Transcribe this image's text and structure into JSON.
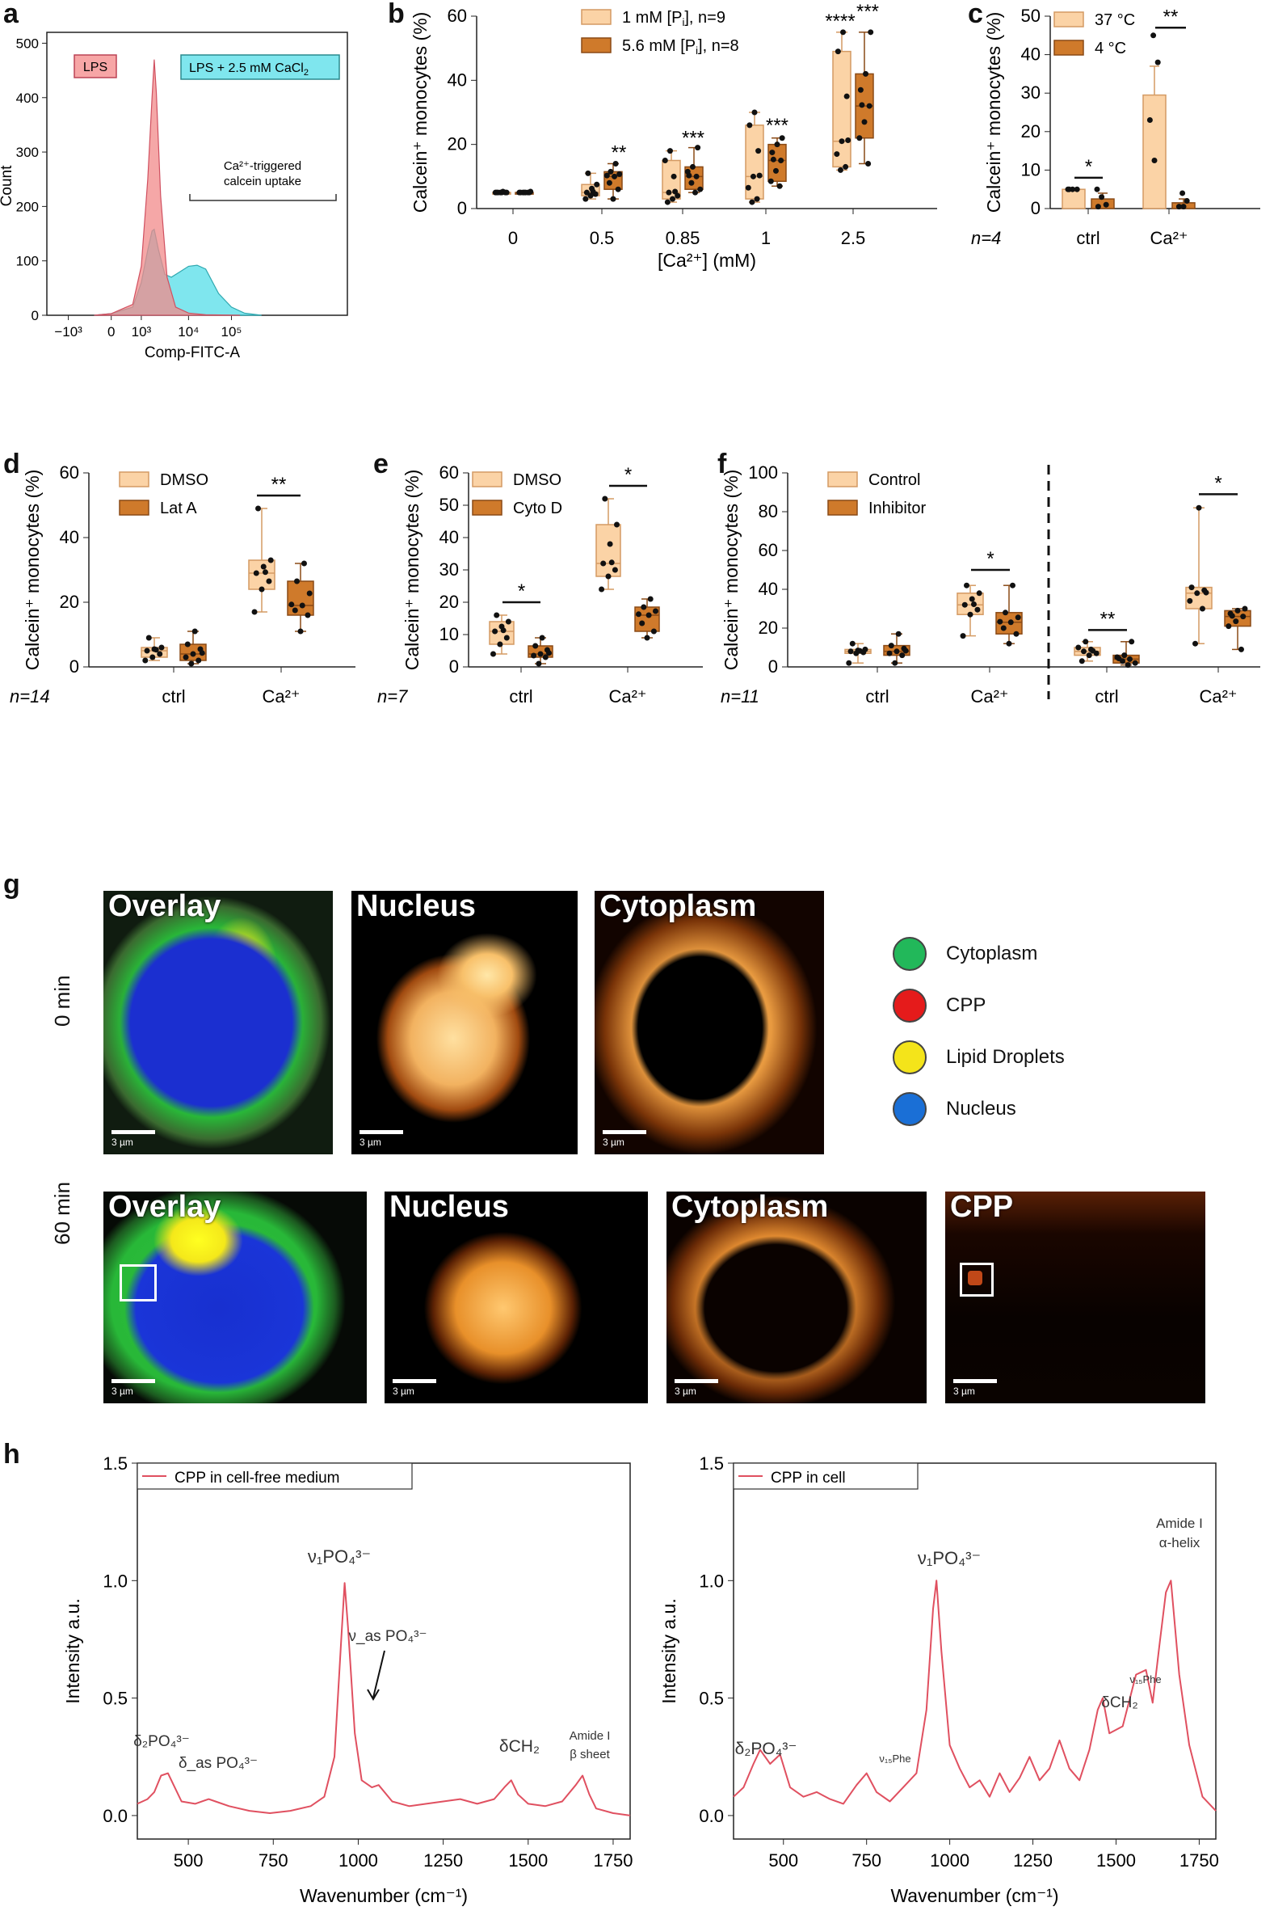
{
  "panel_letters": {
    "a": "a",
    "b": "b",
    "c": "c",
    "d": "d",
    "e": "e",
    "f": "f",
    "g": "g",
    "h": "h"
  },
  "colors": {
    "light": "#fbd3a6",
    "dark": "#cf7a2b",
    "lightEdge": "#d49a63",
    "darkEdge": "#8a4a16",
    "pink": "#f28a8a",
    "cyan": "#5fe0ea",
    "redline": "#e05060"
  },
  "panel_a": {
    "legend1": "LPS",
    "legend2": "LPS + 2.5 mM CaCl",
    "legend2_sub": "2",
    "annotation_line1": "Ca²⁺-triggered",
    "annotation_line2": "calcein uptake",
    "chart_data": {
      "type": "area",
      "xlabel": "Comp-FITC-A",
      "ylabel": "Count",
      "xticks": [
        "−10³",
        "0",
        "10³",
        "10⁴",
        "10⁵"
      ],
      "yticks": [
        0,
        100,
        200,
        300,
        400,
        500
      ],
      "ylim": [
        0,
        520
      ],
      "series": [
        {
          "name": "LPS",
          "x": [
            -0.4,
            0,
            0.5,
            0.7,
            0.85,
            0.95,
            1.0,
            1.05,
            1.15,
            1.3,
            1.5,
            1.8,
            2.2,
            3.0
          ],
          "values": [
            0,
            3,
            20,
            90,
            250,
            400,
            470,
            410,
            220,
            70,
            15,
            4,
            1,
            0
          ]
        },
        {
          "name": "LPS + 2.5 mM CaCl2",
          "x": [
            -0.4,
            0,
            0.5,
            0.7,
            0.85,
            0.95,
            1.0,
            1.1,
            1.25,
            1.4,
            1.6,
            1.8,
            2.0,
            2.2,
            2.5,
            2.8,
            3.1,
            3.5
          ],
          "values": [
            0,
            3,
            15,
            60,
            120,
            155,
            158,
            120,
            75,
            70,
            80,
            90,
            92,
            85,
            40,
            15,
            4,
            0
          ]
        }
      ]
    }
  },
  "panel_b": {
    "legend1": "1 mM [P",
    "legend1_sub": "i",
    "legend1_end": "], n=9",
    "legend2": "5.6 mM [P",
    "legend2_sub": "i",
    "legend2_end": "], n=8",
    "ylabel": "Calcein⁺ monocytes (%)",
    "xlabel": "[Ca²⁺] (mM)",
    "chart_data": {
      "type": "box",
      "categories": [
        "0",
        "0.5",
        "0.85",
        "1",
        "2.5"
      ],
      "ylim": [
        0,
        60
      ],
      "yticks": [
        0,
        20,
        40,
        60
      ],
      "series": [
        {
          "name": "1 mM [Pi], n=9",
          "boxes": [
            [
              5,
              5,
              5,
              5,
              5
            ],
            [
              3,
              4,
              5,
              7.5,
              11
            ],
            [
              2,
              3,
              5,
              15,
              18
            ],
            [
              2,
              3,
              10,
              26,
              30
            ],
            [
              12,
              13,
              21,
              49,
              55
            ]
          ]
        },
        {
          "name": "5.6 mM [Pi], n=8",
          "boxes": [
            [
              5,
              5,
              5,
              5,
              5
            ],
            [
              3,
              6,
              10,
              11.5,
              14
            ],
            [
              5,
              6,
              10,
              13,
              19
            ],
            [
              7,
              8.5,
              15,
              20,
              22
            ],
            [
              14,
              22,
              32,
              42,
              55
            ]
          ]
        }
      ],
      "sig": [
        "",
        "**",
        "***",
        "***",
        "****|***"
      ]
    }
  },
  "panel_c": {
    "legend1": "37 °C",
    "legend2": "4 °C",
    "n_label": "n=4",
    "ylabel": "Calcein⁺ monocytes (%)",
    "chart_data": {
      "type": "bar",
      "categories": [
        "ctrl",
        "Ca²⁺"
      ],
      "ylim": [
        0,
        50
      ],
      "yticks": [
        0,
        10,
        20,
        30,
        40,
        50
      ],
      "series": [
        {
          "name": "37 °C",
          "values": [
            5,
            29.5
          ],
          "err": [
            0,
            7.5
          ],
          "points": [
            [
              5,
              5,
              5,
              5
            ],
            [
              45,
              38,
              23,
              12.5
            ]
          ]
        },
        {
          "name": "4 °C",
          "values": [
            2.5,
            1.5
          ],
          "err": [
            1.5,
            1
          ],
          "points": [
            [
              5,
              3,
              1,
              0.5
            ],
            [
              4,
              2,
              0.5,
              0.5
            ]
          ]
        }
      ],
      "sig": [
        "*",
        "**"
      ]
    }
  },
  "panel_d": {
    "legend1": "DMSO",
    "legend2": "Lat A",
    "n_label": "n=14",
    "ylabel": "Calcein⁺ monocytes (%)",
    "chart_data": {
      "type": "box",
      "categories": [
        "ctrl",
        "Ca²⁺"
      ],
      "ylim": [
        0,
        60
      ],
      "yticks": [
        0,
        20,
        40,
        60
      ],
      "series": [
        {
          "name": "DMSO",
          "boxes": [
            [
              2,
              3,
              5,
              6,
              9
            ],
            [
              17,
              24,
              29,
              33,
              49
            ]
          ]
        },
        {
          "name": "Lat A",
          "boxes": [
            [
              1,
              2,
              4,
              7,
              11
            ],
            [
              11,
              16,
              19,
              26.5,
              32
            ]
          ]
        }
      ],
      "sig": [
        "",
        "**"
      ]
    }
  },
  "panel_e": {
    "legend1": "DMSO",
    "legend2": "Cyto D",
    "n_label": "n=7",
    "ylabel": "Calcein⁺ monocytes (%)",
    "chart_data": {
      "type": "box",
      "categories": [
        "ctrl",
        "Ca²⁺"
      ],
      "ylim": [
        0,
        60
      ],
      "yticks": [
        0,
        10,
        20,
        30,
        40,
        50,
        60
      ],
      "series": [
        {
          "name": "DMSO",
          "boxes": [
            [
              4,
              7,
              11,
              14,
              16
            ],
            [
              24,
              28,
              32,
              44,
              52
            ]
          ]
        },
        {
          "name": "Cyto D",
          "boxes": [
            [
              1,
              3,
              4,
              6.5,
              9
            ],
            [
              9,
              11,
              16,
              18.5,
              21
            ]
          ]
        }
      ],
      "sig": [
        "*",
        "*"
      ]
    }
  },
  "panel_f": {
    "legend1": "Control",
    "legend2": "Inhibitor",
    "n_label": "n=11",
    "ylabel": "Calcein⁺ monocytes (%)",
    "chart_data": {
      "type": "box",
      "categories": [
        "ctrl",
        "Ca²⁺",
        "ctrl",
        "Ca²⁺"
      ],
      "ylim": [
        0,
        100
      ],
      "yticks": [
        0,
        20,
        40,
        60,
        80,
        100
      ],
      "series": [
        {
          "name": "Control",
          "boxes": [
            [
              2,
              7,
              8,
              9,
              12
            ],
            [
              16,
              27,
              32,
              38,
              42
            ],
            [
              3,
              6,
              8,
              10,
              13
            ],
            [
              12,
              30,
              38,
              41,
              82
            ]
          ]
        },
        {
          "name": "Inhibitor",
          "boxes": [
            [
              2,
              6,
              8,
              11,
              17
            ],
            [
              12,
              17,
              23,
              28,
              42
            ],
            [
              1,
              2,
              4,
              6,
              13
            ],
            [
              9,
              21,
              26,
              29,
              30
            ]
          ]
        }
      ],
      "sig": [
        "*",
        "**",
        "*"
      ]
    }
  },
  "panel_g": {
    "row1_label": "0 min",
    "row2_label": "60 min",
    "titles": {
      "overlay": "Overlay",
      "nucleus": "Nucleus",
      "cytoplasm": "Cytoplasm",
      "cpp": "CPP"
    },
    "scale_bar": "3 µm",
    "legend": [
      {
        "label": "Cytoplasm",
        "color": "#22b85a"
      },
      {
        "label": "CPP",
        "color": "#e51b1b"
      },
      {
        "label": "Lipid Droplets",
        "color": "#f4e41a"
      },
      {
        "label": "Nucleus",
        "color": "#1a6fd6"
      }
    ]
  },
  "panel_h": {
    "left": {
      "legend": "CPP in cell-free medium",
      "annotations": [
        "ν₁PO₄³⁻",
        "ν_as PO₄³⁻",
        "δ₂PO₄³⁻",
        "δ_as PO₄³⁻",
        "δCH₂",
        "Amide I",
        "β sheet"
      ],
      "chart_data": {
        "type": "line",
        "xlabel": "Wavenumber (cm⁻¹)",
        "ylabel": "Intensity a.u.",
        "xlim": [
          350,
          1800
        ],
        "ylim": [
          -0.1,
          1.5
        ],
        "xticks": [
          500,
          750,
          1000,
          1250,
          1500,
          1750
        ],
        "yticks": [
          0.0,
          0.5,
          1.0,
          1.5
        ],
        "x": [
          350,
          380,
          400,
          420,
          440,
          460,
          480,
          520,
          560,
          580,
          620,
          680,
          740,
          800,
          860,
          900,
          930,
          950,
          960,
          970,
          990,
          1010,
          1040,
          1060,
          1100,
          1150,
          1200,
          1250,
          1300,
          1350,
          1400,
          1430,
          1450,
          1470,
          1500,
          1550,
          1600,
          1640,
          1660,
          1680,
          1700,
          1750,
          1800
        ],
        "values": [
          0.05,
          0.07,
          0.1,
          0.17,
          0.18,
          0.12,
          0.06,
          0.05,
          0.07,
          0.06,
          0.04,
          0.02,
          0.01,
          0.02,
          0.04,
          0.08,
          0.25,
          0.75,
          0.99,
          0.8,
          0.35,
          0.15,
          0.12,
          0.13,
          0.06,
          0.04,
          0.05,
          0.06,
          0.07,
          0.05,
          0.07,
          0.12,
          0.15,
          0.09,
          0.05,
          0.04,
          0.06,
          0.13,
          0.17,
          0.09,
          0.03,
          0.01,
          0.0
        ]
      }
    },
    "right": {
      "legend": "CPP in cell",
      "annotations": [
        "ν₁PO₄³⁻",
        "Amide I",
        "α-helix",
        "δCH₂",
        "ν₁₅Phe",
        "ν₁₅Phe",
        "δ₂PO₄³⁻"
      ],
      "chart_data": {
        "type": "line",
        "xlabel": "Wavenumber (cm⁻¹)",
        "ylabel": "Intensity a.u.",
        "xlim": [
          350,
          1800
        ],
        "ylim": [
          -0.1,
          1.5
        ],
        "xticks": [
          500,
          750,
          1000,
          1250,
          1500,
          1750
        ],
        "yticks": [
          0.0,
          0.5,
          1.0,
          1.5
        ],
        "x": [
          350,
          380,
          410,
          430,
          460,
          490,
          520,
          560,
          600,
          640,
          680,
          720,
          750,
          780,
          820,
          860,
          900,
          930,
          950,
          960,
          975,
          1000,
          1030,
          1060,
          1090,
          1120,
          1150,
          1180,
          1210,
          1240,
          1270,
          1300,
          1330,
          1360,
          1390,
          1420,
          1445,
          1460,
          1480,
          1520,
          1560,
          1590,
          1610,
          1630,
          1650,
          1665,
          1690,
          1720,
          1760,
          1800
        ],
        "values": [
          0.08,
          0.12,
          0.22,
          0.28,
          0.22,
          0.26,
          0.12,
          0.08,
          0.1,
          0.07,
          0.05,
          0.13,
          0.18,
          0.1,
          0.06,
          0.12,
          0.18,
          0.45,
          0.88,
          1.0,
          0.7,
          0.3,
          0.2,
          0.12,
          0.15,
          0.08,
          0.18,
          0.1,
          0.16,
          0.25,
          0.15,
          0.2,
          0.32,
          0.2,
          0.15,
          0.28,
          0.45,
          0.5,
          0.35,
          0.38,
          0.6,
          0.62,
          0.48,
          0.72,
          0.95,
          1.0,
          0.6,
          0.3,
          0.08,
          0.02
        ]
      }
    }
  }
}
